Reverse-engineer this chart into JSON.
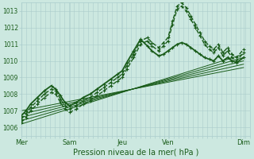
{
  "title": "Pression niveau de la mer( hPa )",
  "bg_color": "#cce8e0",
  "grid_color": "#aacccc",
  "line_color": "#1a5c1a",
  "ylim": [
    1005.5,
    1013.5
  ],
  "yticks": [
    1006,
    1007,
    1008,
    1009,
    1010,
    1011,
    1012,
    1013
  ],
  "xtick_labels": [
    "Mer",
    "Sam",
    "Jeu",
    "Ven",
    "Dim"
  ],
  "xtick_positions": [
    0.0,
    0.21,
    0.44,
    0.64,
    0.97
  ],
  "n_xminor": 48,
  "trend_lines": [
    {
      "x0": 0.0,
      "x1": 0.97,
      "y0": 1006.2,
      "y1": 1010.4
    },
    {
      "x0": 0.0,
      "x1": 0.97,
      "y0": 1006.4,
      "y1": 1010.2
    },
    {
      "x0": 0.0,
      "x1": 0.97,
      "y0": 1006.6,
      "y1": 1010.0
    },
    {
      "x0": 0.0,
      "x1": 0.97,
      "y0": 1006.8,
      "y1": 1009.8
    },
    {
      "x0": 0.0,
      "x1": 0.97,
      "y0": 1007.0,
      "y1": 1009.6
    }
  ],
  "series": [
    {
      "x": [
        0.0,
        0.02,
        0.04,
        0.07,
        0.1,
        0.13,
        0.15,
        0.17,
        0.19,
        0.21,
        0.24,
        0.27,
        0.3,
        0.33,
        0.36,
        0.39,
        0.42,
        0.44,
        0.46,
        0.49,
        0.52,
        0.55,
        0.57,
        0.6,
        0.62,
        0.64,
        0.66,
        0.68,
        0.7,
        0.72,
        0.74,
        0.76,
        0.78,
        0.8,
        0.82,
        0.84,
        0.86,
        0.88,
        0.9,
        0.92,
        0.94,
        0.97
      ],
      "y": [
        1006.3,
        1006.6,
        1007.0,
        1007.4,
        1007.8,
        1008.1,
        1008.0,
        1007.5,
        1007.1,
        1006.9,
        1007.1,
        1007.4,
        1007.6,
        1007.9,
        1008.2,
        1008.5,
        1008.8,
        1009.0,
        1009.5,
        1010.2,
        1011.0,
        1011.2,
        1010.9,
        1010.6,
        1010.9,
        1011.2,
        1012.2,
        1013.1,
        1013.3,
        1013.0,
        1012.5,
        1012.0,
        1011.5,
        1011.0,
        1010.7,
        1010.5,
        1010.8,
        1010.3,
        1010.6,
        1010.2,
        1010.0,
        1010.5
      ],
      "lw": 1.0,
      "style": "--",
      "marker": "+"
    },
    {
      "x": [
        0.0,
        0.02,
        0.04,
        0.07,
        0.1,
        0.13,
        0.15,
        0.17,
        0.19,
        0.21,
        0.24,
        0.27,
        0.3,
        0.33,
        0.36,
        0.39,
        0.42,
        0.44,
        0.46,
        0.49,
        0.52,
        0.55,
        0.57,
        0.6,
        0.62,
        0.64,
        0.66,
        0.68,
        0.7,
        0.72,
        0.74,
        0.76,
        0.78,
        0.8,
        0.82,
        0.84,
        0.86,
        0.88,
        0.9,
        0.92,
        0.94,
        0.97
      ],
      "y": [
        1006.5,
        1006.8,
        1007.2,
        1007.6,
        1008.0,
        1008.3,
        1008.2,
        1007.7,
        1007.3,
        1007.1,
        1007.3,
        1007.6,
        1007.8,
        1008.1,
        1008.4,
        1008.7,
        1009.0,
        1009.2,
        1009.7,
        1010.4,
        1011.2,
        1011.4,
        1011.1,
        1010.8,
        1011.1,
        1011.4,
        1012.4,
        1013.3,
        1013.5,
        1013.2,
        1012.7,
        1012.2,
        1011.7,
        1011.2,
        1010.9,
        1010.7,
        1011.0,
        1010.5,
        1010.8,
        1010.4,
        1010.2,
        1010.7
      ],
      "lw": 1.0,
      "style": "--",
      "marker": "+"
    },
    {
      "x": [
        0.0,
        0.02,
        0.04,
        0.07,
        0.1,
        0.13,
        0.15,
        0.17,
        0.19,
        0.21,
        0.24,
        0.27,
        0.3,
        0.33,
        0.36,
        0.39,
        0.42,
        0.44,
        0.46,
        0.49,
        0.52,
        0.55,
        0.57,
        0.6,
        0.62,
        0.64,
        0.66,
        0.68,
        0.7,
        0.72,
        0.74,
        0.76,
        0.78,
        0.8,
        0.82,
        0.84,
        0.86,
        0.88,
        0.9,
        0.92,
        0.94,
        0.97
      ],
      "y": [
        1006.7,
        1007.0,
        1007.4,
        1007.8,
        1008.2,
        1008.5,
        1008.3,
        1007.9,
        1007.5,
        1007.3,
        1007.5,
        1007.8,
        1008.0,
        1008.3,
        1008.6,
        1008.9,
        1009.2,
        1009.4,
        1009.9,
        1010.6,
        1011.3,
        1010.9,
        1010.6,
        1010.3,
        1010.4,
        1010.6,
        1010.8,
        1011.0,
        1011.1,
        1011.0,
        1010.8,
        1010.6,
        1010.4,
        1010.2,
        1010.1,
        1010.0,
        1010.3,
        1010.0,
        1010.2,
        1010.0,
        1009.9,
        1010.2
      ],
      "lw": 1.3,
      "style": "-",
      "marker": "+"
    }
  ]
}
